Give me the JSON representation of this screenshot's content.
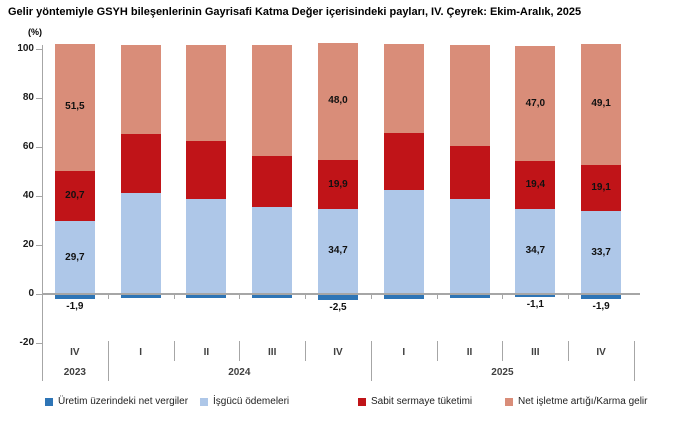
{
  "chart_data": {
    "type": "bar",
    "stacked": true,
    "title": "Gelir yöntemiyle GSYH bileşenlerinin Gayrisafi Katma Değer içerisindeki payları, IV. Çeyrek: Ekim-Aralık, 2025",
    "unit_label": "(%)",
    "axis_color": "#A6A6A6",
    "y_axis": {
      "min": -20,
      "max": 100,
      "ticks": [
        100,
        80,
        60,
        40,
        20,
        0,
        -20
      ]
    },
    "categories": [
      "IV",
      "I",
      "II",
      "III",
      "IV",
      "I",
      "II",
      "III",
      "IV"
    ],
    "year_groups": [
      {
        "label": "2023",
        "count": 1
      },
      {
        "label": "2024",
        "count": 4
      },
      {
        "label": "2025",
        "count": 4
      }
    ],
    "series": [
      {
        "name": "Üretim üzerindeki net vergiler",
        "color": "#2E75B6",
        "values": [
          -1.9,
          -1.6,
          -1.6,
          -1.5,
          -2.5,
          -2.0,
          -1.6,
          -1.1,
          -1.9
        ]
      },
      {
        "name": "İşgücü ödemeleri",
        "color": "#AEC7E8",
        "values": [
          29.7,
          41.3,
          38.8,
          35.4,
          34.7,
          42.4,
          38.7,
          34.7,
          33.7
        ]
      },
      {
        "name": "Sabit sermaye tüketimi",
        "color": "#C01418",
        "values": [
          20.7,
          23.9,
          23.6,
          20.9,
          19.9,
          23.4,
          21.7,
          19.4,
          19.1
        ]
      },
      {
        "name": "Net işletme artığı/Karma gelir",
        "color": "#D98D79",
        "values": [
          51.5,
          36.4,
          39.2,
          45.2,
          48.0,
          36.2,
          41.2,
          47.0,
          49.1
        ]
      }
    ],
    "labeled_bar_indices": [
      0,
      4,
      7,
      8
    ],
    "legend_position": "bottom",
    "grid": false
  }
}
